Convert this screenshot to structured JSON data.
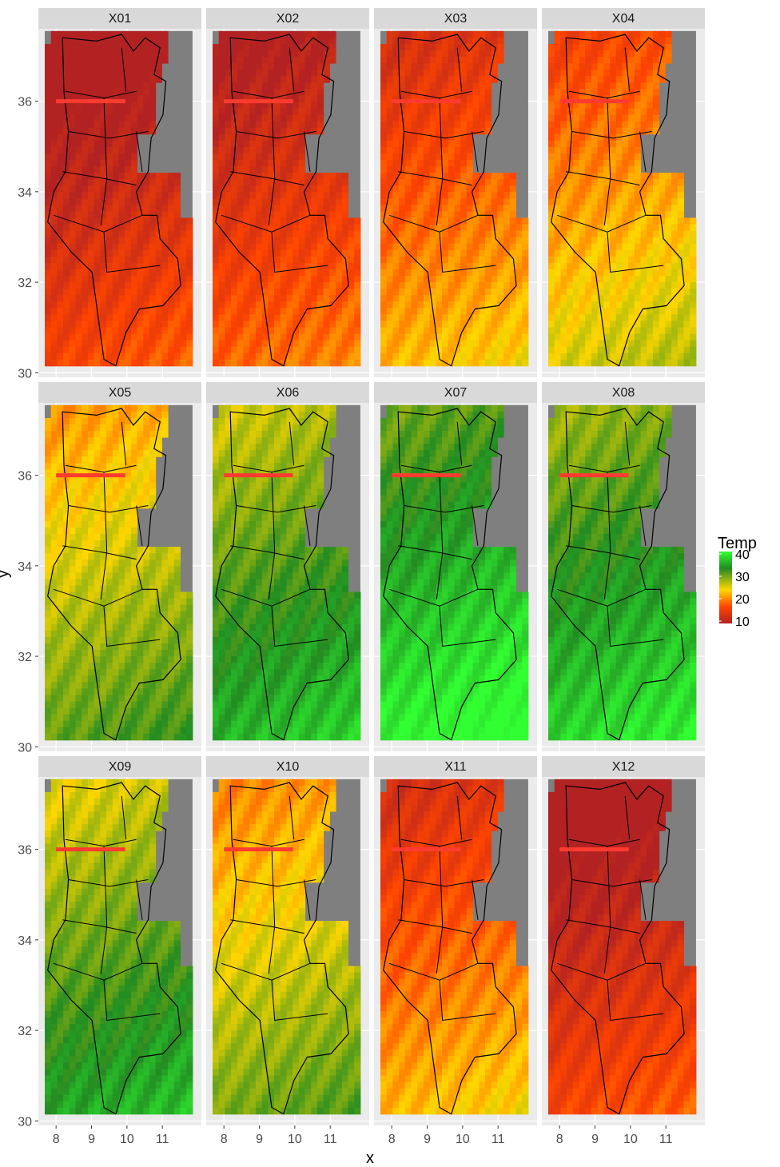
{
  "chart_data": {
    "type": "heatmap",
    "facets": [
      "X01",
      "X02",
      "X03",
      "X04",
      "X05",
      "X06",
      "X07",
      "X08",
      "X09",
      "X10",
      "X11",
      "X12"
    ],
    "xlabel": "x",
    "ylabel": "y",
    "x_ticks": [
      8,
      9,
      10,
      11
    ],
    "y_ticks": [
      30,
      32,
      34,
      36
    ],
    "xlim": [
      7.5,
      12.1
    ],
    "ylim": [
      29.9,
      37.6
    ],
    "grid": true,
    "legend": {
      "title": "Temp",
      "position": "right",
      "breaks": [
        40,
        30,
        20,
        10
      ],
      "colors": {
        "low": "#b22222",
        "mid_low": "#ff4500",
        "mid": "#ffd700",
        "mid_high": "#228b22",
        "high": "#32ff32"
      }
    },
    "monthly_mean_temp_approx": {
      "X01": 12,
      "X02": 14,
      "X03": 18,
      "X04": 21,
      "X05": 26,
      "X06": 31,
      "X07": 35,
      "X08": 33,
      "X09": 30,
      "X10": 25,
      "X11": 18,
      "X12": 12
    },
    "mask_color": "#7f7f7f",
    "line_segment": {
      "color": "#ff3b30",
      "x": [
        8.0,
        9.95
      ],
      "y": [
        36.0,
        36.0
      ]
    }
  }
}
